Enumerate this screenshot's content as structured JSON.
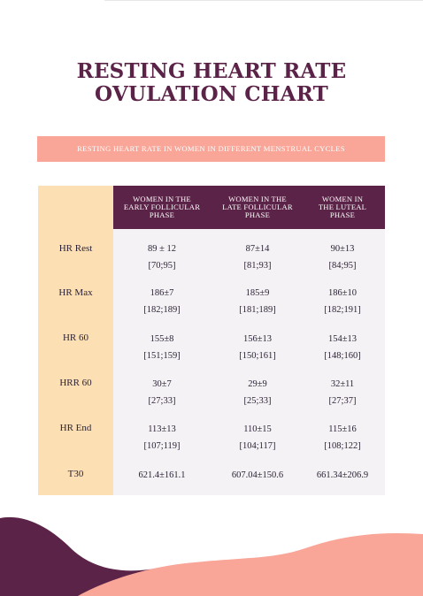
{
  "title": {
    "line1": "RESTING HEART RATE",
    "line2": "OVULATION CHART"
  },
  "banner": "RESTING HEART RATE IN WOMEN IN DIFFERENT MENSTRUAL CYCLES",
  "colors": {
    "primary": "#5a2347",
    "accent": "#f9a597",
    "row_label_bg": "#fce0b4",
    "table_bg": "#f4f2f4"
  },
  "table": {
    "columns": [
      {
        "line1": "WOMEN IN THE",
        "line2": "EARLY FOLLICULAR",
        "line3": "PHASE"
      },
      {
        "line1": "WOMEN IN THE",
        "line2": "LATE FOLLICULAR",
        "line3": "PHASE"
      },
      {
        "line1": "WOMEN IN",
        "line2": "THE LUTEAL",
        "line3": "PHASE"
      }
    ],
    "rows": [
      {
        "label": "HR Rest",
        "cells": [
          {
            "mean": "89 ± 12",
            "range": "[70;95]"
          },
          {
            "mean": "87±14",
            "range": "[81;93]"
          },
          {
            "mean": "90±13",
            "range": "[84;95]"
          }
        ]
      },
      {
        "label": "HR Max",
        "cells": [
          {
            "mean": "186±7",
            "range": "[182;189]"
          },
          {
            "mean": "185±9",
            "range": "[181;189]"
          },
          {
            "mean": "186±10",
            "range": "[182;191]"
          }
        ]
      },
      {
        "label": "HR 60",
        "cells": [
          {
            "mean": "155±8",
            "range": "[151;159]"
          },
          {
            "mean": "156±13",
            "range": "[150;161]"
          },
          {
            "mean": "154±13",
            "range": "[148;160]"
          }
        ]
      },
      {
        "label": "HRR 60",
        "cells": [
          {
            "mean": "30±7",
            "range": "[27;33]"
          },
          {
            "mean": "29±9",
            "range": "[25;33]"
          },
          {
            "mean": "32±11",
            "range": "[27;37]"
          }
        ]
      },
      {
        "label": "HR End",
        "cells": [
          {
            "mean": "113±13",
            "range": "[107;119]"
          },
          {
            "mean": "110±15",
            "range": "[104;117]"
          },
          {
            "mean": "115±16",
            "range": "[108;122]"
          }
        ]
      },
      {
        "label": "T30",
        "cells": [
          {
            "mean": "621.4±161.1"
          },
          {
            "mean": "607.04±150.6"
          },
          {
            "mean": "661.34±206.9"
          }
        ]
      }
    ]
  }
}
